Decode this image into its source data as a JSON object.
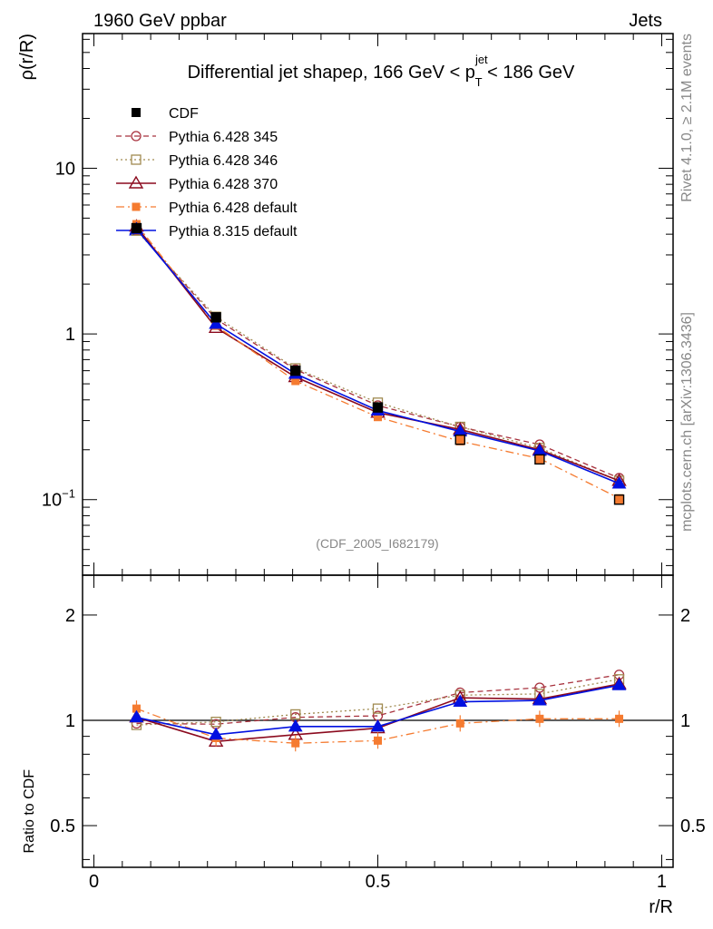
{
  "header": {
    "left": "1960 GeV ppbar",
    "right": "Jets"
  },
  "side_labels": {
    "rivet": "Rivet 4.1.0, ≥ 2.1M events",
    "mcplots": "mcplots.cern.ch [arXiv:1306.3436]"
  },
  "colors": {
    "cdf": "#000000",
    "p345": "#a8323e",
    "p346": "#a08a50",
    "p370": "#8b0a1e",
    "pdefault": "#f57b30",
    "p8": "#0010e0"
  },
  "chart_data": [
    {
      "type": "line",
      "title_main": "Differential jet shapeρ, 166 GeV < p",
      "title_sup": "jet",
      "title_sub": "T",
      "title_tail": " < 186 GeV",
      "ylabel": "ρ(r/R)",
      "yscale": "log",
      "ylim": [
        0.035,
        65
      ],
      "yticks": [
        {
          "value": 10,
          "label": "10"
        },
        {
          "value": 1,
          "label": "1"
        },
        {
          "value": 0.1,
          "label": "10",
          "sup": "−1"
        }
      ],
      "watermark": "(CDF_2005_I682179)",
      "x": [
        0.075,
        0.215,
        0.355,
        0.5,
        0.645,
        0.785,
        0.925
      ],
      "series": [
        {
          "name": "CDF",
          "key": "cdf",
          "values": [
            4.35,
            1.26,
            0.6,
            0.36,
            0.23,
            0.175,
            0.1
          ]
        },
        {
          "name": "Pythia 6.428 345",
          "key": "p345",
          "values": [
            4.25,
            1.23,
            0.61,
            0.37,
            0.275,
            0.215,
            0.135
          ]
        },
        {
          "name": "Pythia 6.428 346",
          "key": "p346",
          "values": [
            4.2,
            1.27,
            0.62,
            0.385,
            0.275,
            0.205,
            0.13
          ]
        },
        {
          "name": "Pythia 6.428 370",
          "key": "p370",
          "values": [
            4.45,
            1.09,
            0.55,
            0.335,
            0.265,
            0.2,
            0.13
          ]
        },
        {
          "name": "Pythia 6.428 default",
          "key": "pdefault",
          "values": [
            4.6,
            1.12,
            0.52,
            0.315,
            0.225,
            0.177,
            0.102
          ]
        },
        {
          "name": "Pythia 8.315 default",
          "key": "p8",
          "values": [
            4.3,
            1.15,
            0.575,
            0.345,
            0.258,
            0.197,
            0.125
          ]
        }
      ]
    },
    {
      "type": "line",
      "ylabel": "Ratio to CDF",
      "xlabel": "r/R",
      "yscale": "log",
      "ylim": [
        0.38,
        2.6
      ],
      "xlim": [
        -0.02,
        1.02
      ],
      "yticks": [
        {
          "value": 2,
          "label": "2"
        },
        {
          "value": 1,
          "label": "1"
        },
        {
          "value": 0.5,
          "label": "0.5"
        }
      ],
      "xticks": [
        {
          "value": 0,
          "label": "0"
        },
        {
          "value": 0.5,
          "label": "0.5"
        },
        {
          "value": 1,
          "label": "1"
        }
      ],
      "x": [
        0.075,
        0.215,
        0.355,
        0.5,
        0.645,
        0.785,
        0.925
      ],
      "series": [
        {
          "name": "Pythia 6.428 345",
          "key": "p345",
          "values": [
            0.98,
            0.975,
            1.02,
            1.03,
            1.2,
            1.24,
            1.35
          ]
        },
        {
          "name": "Pythia 6.428 346",
          "key": "p346",
          "values": [
            0.97,
            0.99,
            1.04,
            1.08,
            1.18,
            1.19,
            1.31
          ]
        },
        {
          "name": "Pythia 6.428 370",
          "key": "p370",
          "values": [
            1.02,
            0.87,
            0.91,
            0.95,
            1.16,
            1.15,
            1.27
          ]
        },
        {
          "name": "Pythia 6.428 default",
          "key": "pdefault",
          "values": [
            1.08,
            0.89,
            0.86,
            0.875,
            0.98,
            1.01,
            1.01
          ]
        },
        {
          "name": "Pythia 8.315 default",
          "key": "p8",
          "values": [
            1.02,
            0.91,
            0.96,
            0.96,
            1.13,
            1.14,
            1.26
          ]
        }
      ]
    }
  ]
}
